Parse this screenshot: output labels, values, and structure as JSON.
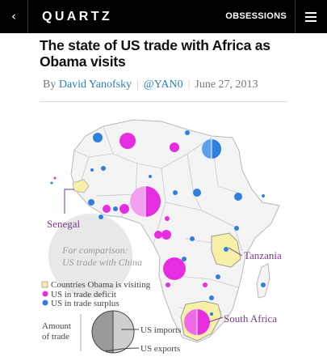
{
  "topbar": {
    "back_glyph": "‹",
    "brand": "QUARTZ",
    "obsessions": "OBSESSIONS",
    "menu_icon": "hamburger-icon"
  },
  "article": {
    "headline_line1": "The state of US trade with Africa as",
    "headline_line2": "Obama visits",
    "by_prefix": "By ",
    "author": "David Yanofsky",
    "handle": "@YAN0",
    "date": "June 27, 2013"
  },
  "map": {
    "labels": {
      "senegal": "Senegal",
      "tanzania": "Tanzania",
      "south_africa": "South Africa",
      "china_line1": "For comparison:",
      "china_line2": "US trade with China"
    },
    "legend": {
      "visiting": "Countries Obama is visiting",
      "deficit": "US in trade deficit",
      "surplus": "US in trade surplus",
      "amount_line1": "Amount",
      "amount_line2": "of trade",
      "imports": "US imports",
      "exports": "US exports"
    },
    "colors": {
      "deficit": "#e62ee0",
      "surplus": "#2d7fe0",
      "visiting_fill": "#f7f0a6",
      "label_purple": "#7a3a8a",
      "china_circle": "#e8e8e8",
      "land": "#f4f4f4",
      "border": "#b8b8b8"
    }
  }
}
